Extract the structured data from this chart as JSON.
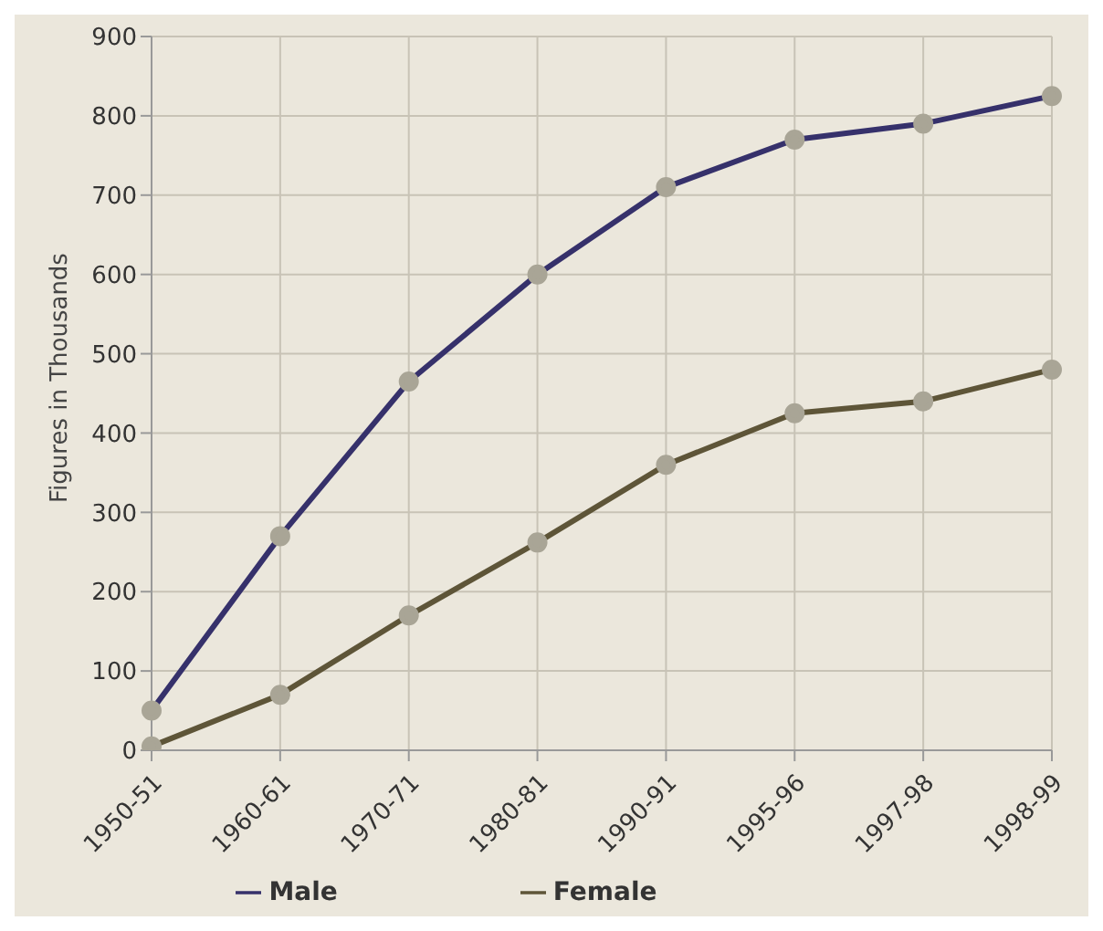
{
  "chart_data": {
    "type": "line",
    "ylabel": "Figures in Thousands",
    "categories": [
      "1950-51",
      "1960-61",
      "1970-71",
      "1980-81",
      "1990-91",
      "1995-96",
      "1997-98",
      "1998-99"
    ],
    "series": [
      {
        "name": "Male",
        "color": "#36316b",
        "values": [
          50,
          270,
          465,
          600,
          710,
          770,
          790,
          825
        ]
      },
      {
        "name": "Female",
        "color": "#5e5538",
        "values": [
          5,
          70,
          170,
          262,
          360,
          425,
          440,
          480
        ]
      }
    ],
    "ylim": [
      0,
      900
    ],
    "yticks": [
      0,
      100,
      200,
      300,
      400,
      500,
      600,
      700,
      800,
      900
    ],
    "grid": true,
    "legend": "bottom",
    "marker": "circle",
    "line_style": "solid"
  }
}
